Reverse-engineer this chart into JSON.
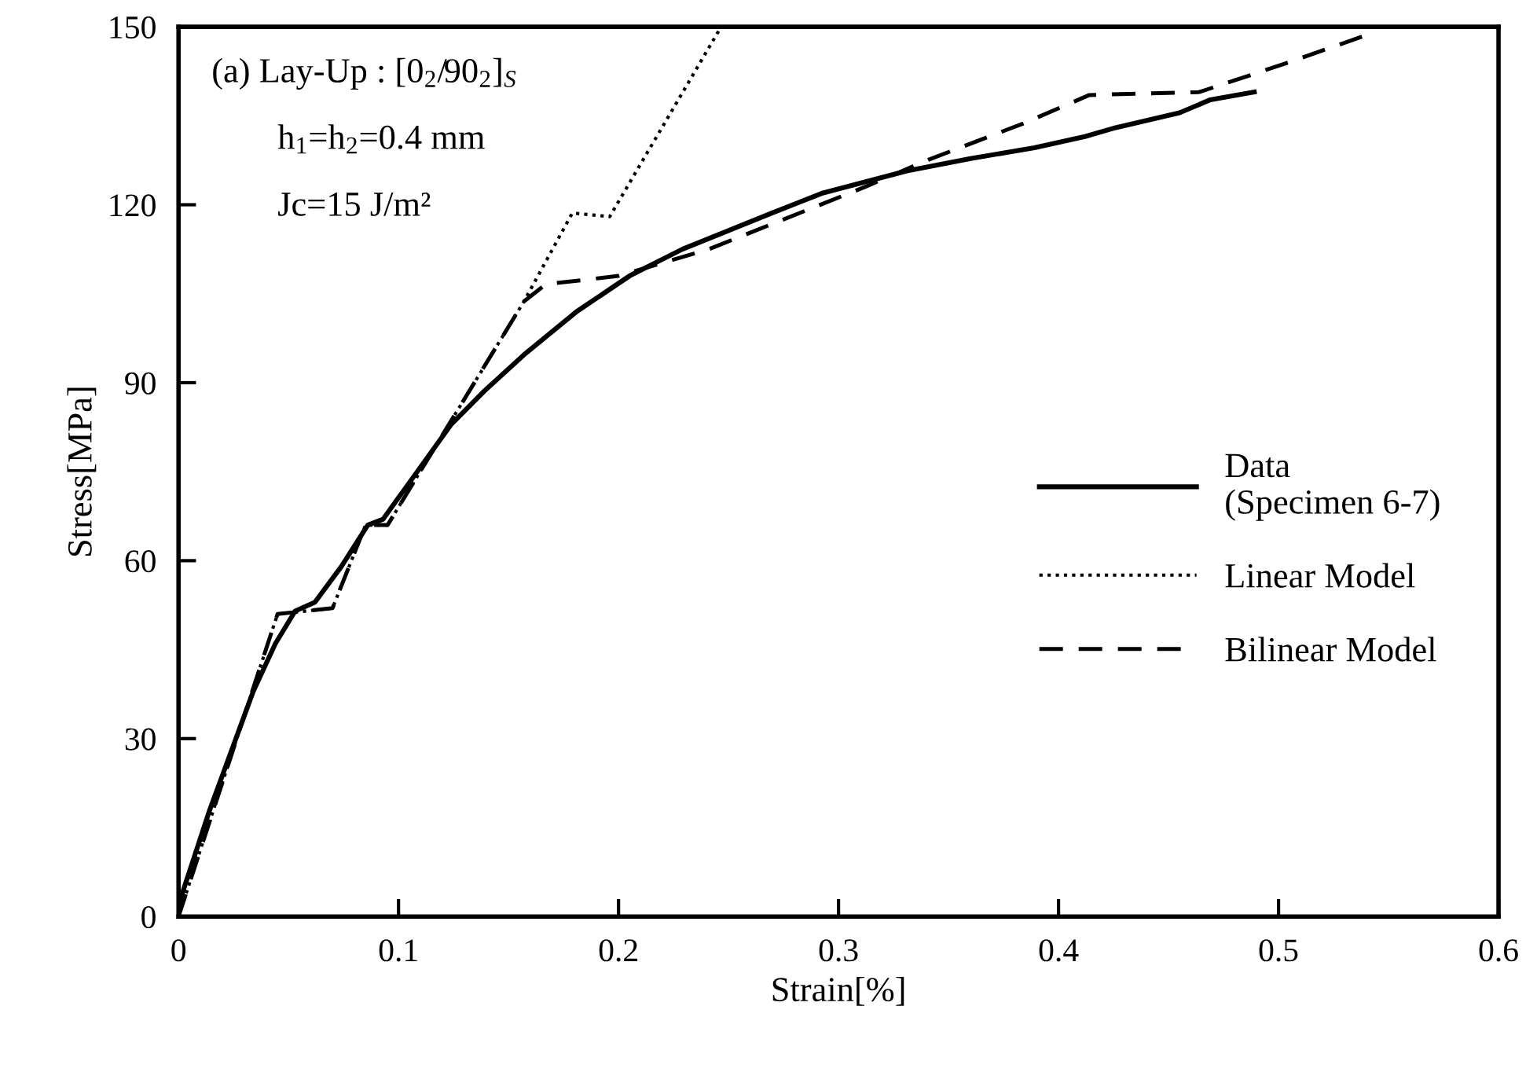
{
  "chart_data": {
    "type": "line",
    "xlabel": "Strain[%]",
    "ylabel": "Stress[MPa]",
    "annotations": [
      "(a) Lay-Up : [0$_{2}$/90$_{2}$]$_{S}$",
      "h$_{1}$=h$_{2}$=0.4 mm",
      "Jc=15 J/m²"
    ],
    "series": [
      {
        "name": "Data\n(Specimen 6-7)",
        "color": "#000000",
        "line_style": "solid",
        "x": [
          0,
          0.014,
          0.034,
          0.044,
          0.053,
          0.062,
          0.074,
          0.086,
          0.093,
          0.124,
          0.139,
          0.157,
          0.181,
          0.205,
          0.229,
          0.269,
          0.293,
          0.331,
          0.36,
          0.389,
          0.412,
          0.426,
          0.455,
          0.469,
          0.489
        ],
        "values": [
          2,
          17.8,
          38,
          46,
          51.5,
          53,
          59,
          66,
          67,
          83,
          88.6,
          94.7,
          102,
          108,
          112.5,
          118.5,
          122,
          125.7,
          127.8,
          129.6,
          131.5,
          133,
          135.5,
          137.7,
          139
        ]
      },
      {
        "name": "Linear Model",
        "color": "#000000",
        "line_style": "dotted",
        "x": [
          0,
          0.045,
          0.07,
          0.085,
          0.095,
          0.157,
          0.179,
          0.196,
          0.246
        ],
        "values": [
          0,
          51,
          52,
          66,
          66,
          103.7,
          118.6,
          118,
          149.6
        ]
      },
      {
        "name": "Bilinear Model",
        "color": "#000000",
        "line_style": "dashed",
        "x": [
          0,
          0.045,
          0.07,
          0.085,
          0.095,
          0.157,
          0.167,
          0.2,
          0.241,
          0.312,
          0.341,
          0.384,
          0.414,
          0.464,
          0.503,
          0.543
        ],
        "values": [
          0,
          51,
          52,
          66,
          66,
          103.7,
          106.6,
          108,
          112.5,
          123,
          127.6,
          133.7,
          138.5,
          139,
          143.8,
          149
        ]
      }
    ],
    "xlim": [
      0,
      0.6
    ],
    "ylim": [
      0,
      150
    ],
    "xticks": [
      0,
      0.1,
      0.2,
      0.3,
      0.4,
      0.5,
      0.6
    ],
    "yticks": [
      0,
      30,
      60,
      90,
      120,
      150
    ],
    "legend": "center right",
    "grid": false
  }
}
